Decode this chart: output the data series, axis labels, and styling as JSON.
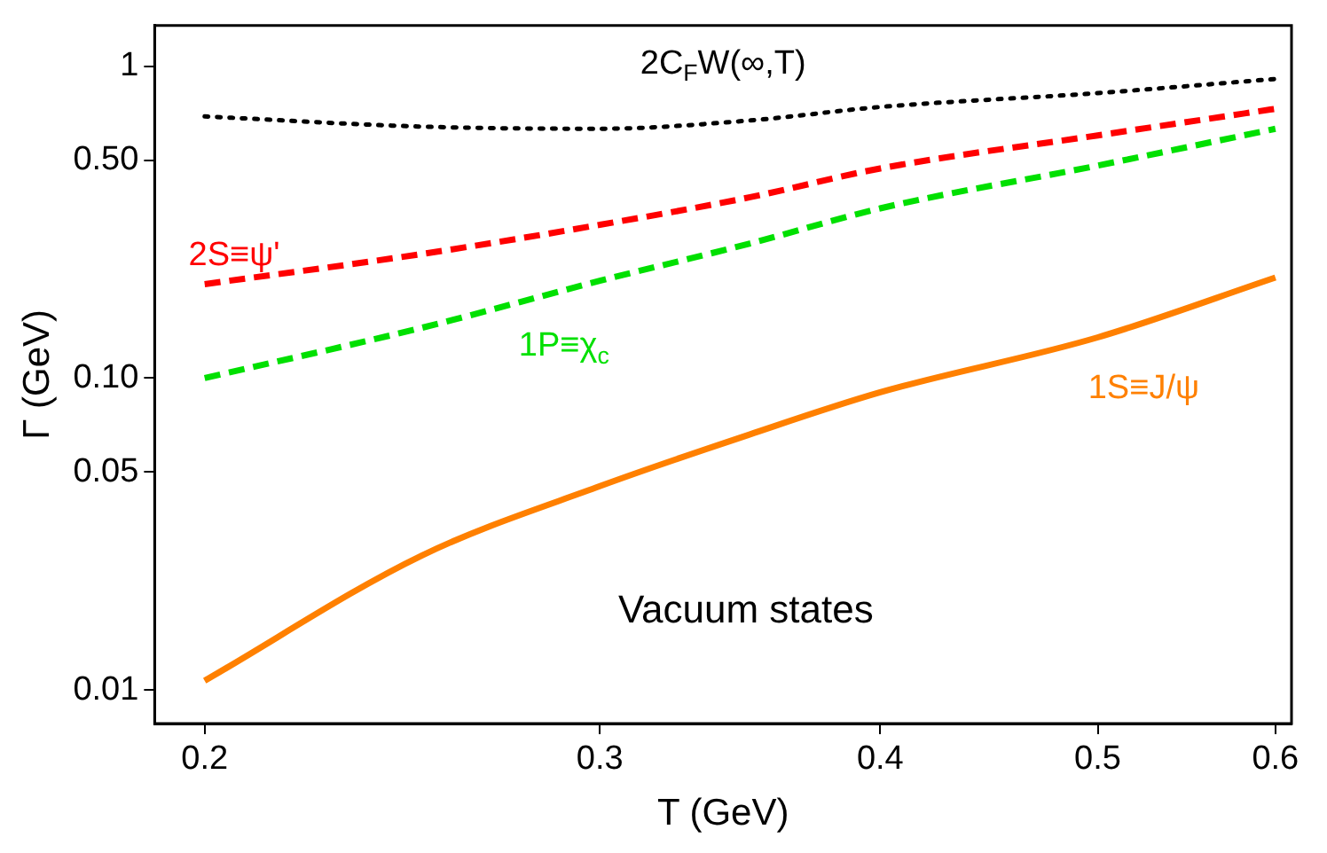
{
  "chart_data": {
    "type": "line",
    "xlabel": "T (GeV)",
    "ylabel": "Γ (GeV)",
    "log": "xy",
    "grid": false,
    "legend": false,
    "marker": "none",
    "xlim": [
      0.19,
      0.61
    ],
    "xticks": [
      0.2,
      0.3,
      0.4,
      0.5,
      0.6
    ],
    "ylim": [
      0.0078,
      1.35
    ],
    "yticks": [
      0.01,
      0.05,
      {
        "value": 0.1,
        "label": "0.10"
      },
      {
        "value": 0.5,
        "label": "0.50"
      },
      1
    ],
    "x": [
      0.2,
      0.25,
      0.3,
      0.35,
      0.4,
      0.5,
      0.6
    ],
    "series": [
      {
        "name": "2C$_{F}$W(∞,T)",
        "color": "#000000",
        "line_style": "dotted",
        "values": [
          0.69,
          0.64,
          0.63,
          0.67,
          0.74,
          0.82,
          0.91
        ]
      },
      {
        "name": "2S≡ψ'",
        "color": "#ff0000",
        "line_style": "dashed",
        "values": [
          0.2,
          0.25,
          0.31,
          0.38,
          0.47,
          0.6,
          0.73
        ]
      },
      {
        "name": "1P≡χ$_{c}$",
        "color": "#00e000",
        "line_style": "dashed",
        "values": [
          0.1,
          0.145,
          0.205,
          0.27,
          0.35,
          0.48,
          0.63
        ]
      },
      {
        "name": "1S≡J/ψ",
        "color": "#ff8000",
        "line_style": "solid",
        "values": [
          0.0107,
          0.027,
          0.045,
          0.066,
          0.09,
          0.135,
          0.21
        ]
      }
    ],
    "annotations": [
      "Vacuum states"
    ]
  }
}
